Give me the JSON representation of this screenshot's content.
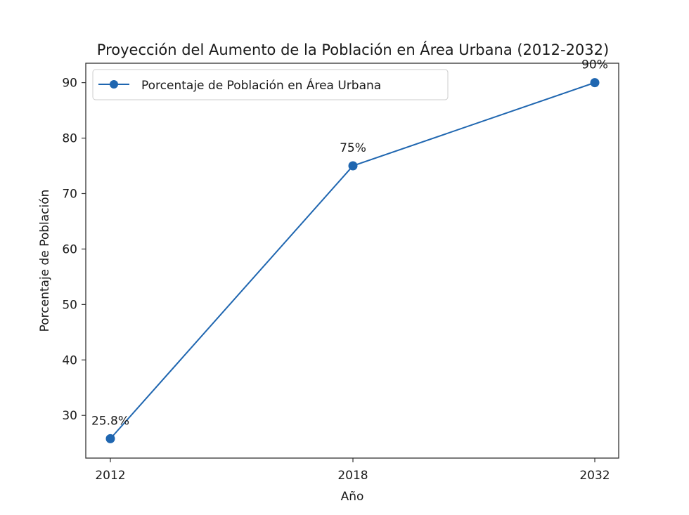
{
  "chart_data": {
    "type": "line",
    "title": "Proyección del Aumento de la Población en Área Urbana (2012-2032)",
    "xlabel": "Año",
    "ylabel": "Porcentaje de Población",
    "categories": [
      "2012",
      "2018",
      "2032"
    ],
    "series": [
      {
        "name": "Porcentaje de Población en Área Urbana",
        "values": [
          25.8,
          75,
          90
        ],
        "labels": [
          "25.8%",
          "75%",
          "90%"
        ],
        "color": "#1f66b0"
      }
    ],
    "yticks": [
      30,
      40,
      50,
      60,
      70,
      80,
      90
    ],
    "ylim": [
      22.3,
      93.5
    ],
    "grid": false,
    "legend_position": "top-left"
  }
}
